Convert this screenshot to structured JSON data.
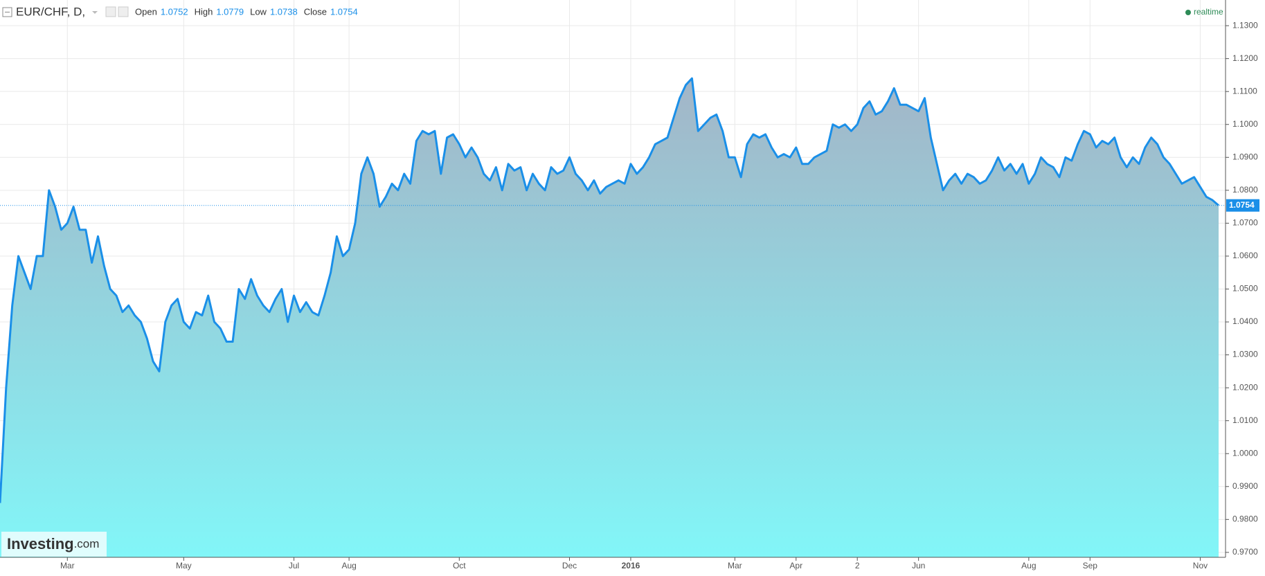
{
  "chart_data": {
    "type": "line",
    "title": "EUR/CHF, D,",
    "ohlc": [
      {
        "label": "Open",
        "value": 1.0752
      },
      {
        "label": "High",
        "value": 1.0779
      },
      {
        "label": "Low",
        "value": 1.0738
      },
      {
        "label": "Close",
        "value": 1.0754
      }
    ],
    "status": "realtime",
    "current_price": 1.0754,
    "logo": [
      "Investing",
      ".com"
    ],
    "color": "#1a8fe8",
    "fill_top": "#a3b5c7",
    "fill_bottom": "#82f6f8",
    "grid": true,
    "ylim": [
      0.9685,
      1.1378
    ],
    "yticks": [
      {
        "value": 0.97,
        "label": "0.9700"
      },
      {
        "value": 0.98,
        "label": "0.9800"
      },
      {
        "value": 0.99,
        "label": "0.9900"
      },
      {
        "value": 1.0,
        "label": "1.0000"
      },
      {
        "value": 1.01,
        "label": "1.0100"
      },
      {
        "value": 1.02,
        "label": "1.0200"
      },
      {
        "value": 1.03,
        "label": "1.0300"
      },
      {
        "value": 1.04,
        "label": "1.0400"
      },
      {
        "value": 1.05,
        "label": "1.0500"
      },
      {
        "value": 1.06,
        "label": "1.0600"
      },
      {
        "value": 1.07,
        "label": "1.0700"
      },
      {
        "value": 1.08,
        "label": "1.0800"
      },
      {
        "value": 1.09,
        "label": "1.0900"
      },
      {
        "value": 1.1,
        "label": "1.1000"
      },
      {
        "value": 1.11,
        "label": "1.1100"
      },
      {
        "value": 1.12,
        "label": "1.1200"
      },
      {
        "value": 1.13,
        "label": "1.1300"
      }
    ],
    "categories": [
      null,
      null,
      null,
      null,
      null,
      null,
      null,
      null,
      null,
      null,
      null,
      "Mar",
      null,
      null,
      null,
      null,
      null,
      null,
      null,
      null,
      null,
      null,
      null,
      null,
      null,
      null,
      null,
      null,
      null,
      null,
      "May",
      null,
      null,
      null,
      null,
      null,
      null,
      null,
      null,
      null,
      null,
      null,
      null,
      null,
      null,
      null,
      null,
      null,
      "Jul",
      null,
      null,
      null,
      null,
      null,
      null,
      null,
      null,
      "Aug",
      null,
      null,
      null,
      null,
      null,
      null,
      null,
      null,
      null,
      null,
      null,
      null,
      null,
      null,
      null,
      null,
      null,
      "Oct",
      null,
      null,
      null,
      null,
      null,
      null,
      null,
      null,
      null,
      null,
      null,
      null,
      null,
      null,
      null,
      null,
      null,
      "Dec",
      null,
      null,
      null,
      null,
      null,
      null,
      null,
      null,
      null,
      "2016",
      null,
      null,
      null,
      null,
      null,
      null,
      null,
      null,
      null,
      null,
      null,
      null,
      null,
      null,
      null,
      null,
      "Mar",
      null,
      null,
      null,
      null,
      null,
      null,
      null,
      null,
      null,
      "Apr",
      null,
      null,
      null,
      null,
      null,
      null,
      null,
      null,
      null,
      "2",
      null,
      null,
      null,
      null,
      null,
      null,
      null,
      null,
      null,
      "Jun",
      null,
      null,
      null,
      null,
      null,
      null,
      null,
      null,
      null,
      null,
      null,
      null,
      null,
      null,
      null,
      null,
      null,
      "Aug",
      null,
      null,
      null,
      null,
      null,
      null,
      null,
      null,
      null,
      "Sep",
      null,
      null,
      null,
      null,
      null,
      null,
      null,
      null,
      null,
      null,
      null,
      null,
      null,
      null,
      null,
      null,
      null,
      "Nov",
      null,
      null,
      null
    ],
    "values": [
      0.985,
      1.02,
      1.045,
      1.06,
      1.055,
      1.05,
      1.06,
      1.06,
      1.08,
      1.075,
      1.068,
      1.07,
      1.075,
      1.068,
      1.068,
      1.058,
      1.066,
      1.057,
      1.05,
      1.048,
      1.043,
      1.045,
      1.042,
      1.04,
      1.035,
      1.028,
      1.025,
      1.04,
      1.045,
      1.047,
      1.04,
      1.038,
      1.043,
      1.042,
      1.048,
      1.04,
      1.038,
      1.034,
      1.034,
      1.05,
      1.047,
      1.053,
      1.048,
      1.045,
      1.043,
      1.047,
      1.05,
      1.04,
      1.048,
      1.043,
      1.046,
      1.043,
      1.042,
      1.048,
      1.055,
      1.066,
      1.06,
      1.062,
      1.07,
      1.085,
      1.09,
      1.085,
      1.075,
      1.078,
      1.082,
      1.08,
      1.085,
      1.082,
      1.095,
      1.098,
      1.097,
      1.098,
      1.085,
      1.096,
      1.097,
      1.094,
      1.09,
      1.093,
      1.09,
      1.085,
      1.083,
      1.087,
      1.08,
      1.088,
      1.086,
      1.087,
      1.08,
      1.085,
      1.082,
      1.08,
      1.087,
      1.085,
      1.086,
      1.09,
      1.085,
      1.083,
      1.08,
      1.083,
      1.079,
      1.081,
      1.082,
      1.083,
      1.082,
      1.088,
      1.085,
      1.087,
      1.09,
      1.094,
      1.095,
      1.096,
      1.102,
      1.108,
      1.112,
      1.114,
      1.098,
      1.1,
      1.102,
      1.103,
      1.098,
      1.09,
      1.09,
      1.084,
      1.094,
      1.097,
      1.096,
      1.097,
      1.093,
      1.09,
      1.091,
      1.09,
      1.093,
      1.088,
      1.088,
      1.09,
      1.091,
      1.092,
      1.1,
      1.099,
      1.1,
      1.098,
      1.1,
      1.105,
      1.107,
      1.103,
      1.104,
      1.107,
      1.111,
      1.106,
      1.106,
      1.105,
      1.104,
      1.108,
      1.096,
      1.088,
      1.08,
      1.083,
      1.085,
      1.082,
      1.085,
      1.084,
      1.082,
      1.083,
      1.086,
      1.09,
      1.086,
      1.088,
      1.085,
      1.088,
      1.082,
      1.085,
      1.09,
      1.088,
      1.087,
      1.084,
      1.09,
      1.089,
      1.094,
      1.098,
      1.097,
      1.093,
      1.095,
      1.094,
      1.096,
      1.09,
      1.087,
      1.09,
      1.088,
      1.093,
      1.096,
      1.094,
      1.09,
      1.088,
      1.085,
      1.082,
      1.083,
      1.084,
      1.081,
      1.078,
      1.077,
      1.0754
    ]
  }
}
